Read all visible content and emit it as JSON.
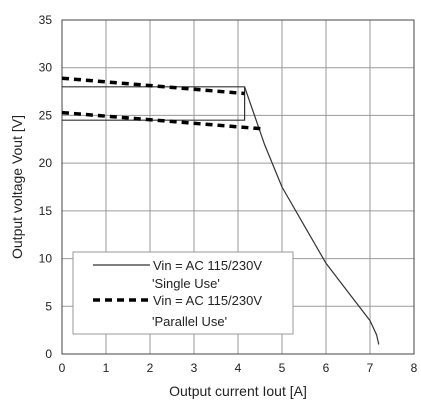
{
  "chart_data": {
    "type": "line",
    "xlabel": "Output current Iout [A]",
    "ylabel": "Output voltage Vout [V]",
    "xlim": [
      0,
      8
    ],
    "ylim": [
      0,
      35
    ],
    "xticks": [
      "0",
      "1",
      "2",
      "3",
      "4",
      "5",
      "6",
      "7",
      "8"
    ],
    "yticks": [
      "0",
      "5",
      "10",
      "15",
      "20",
      "25",
      "30",
      "35"
    ],
    "grid": true,
    "legend_position": "bottom-left",
    "series": [
      {
        "name": "Vin = AC 115/230V 'Single Use'",
        "name_lines": [
          "Vin = AC 115/230V",
          "'Single Use'"
        ],
        "style": "solid",
        "color": "#333333",
        "segments": [
          [
            [
              0,
              28
            ],
            [
              4.15,
              28
            ],
            [
              4.15,
              24.5
            ],
            [
              0,
              24.5
            ]
          ],
          [
            [
              4.15,
              28
            ],
            [
              4.6,
              22
            ],
            [
              5.0,
              17.5
            ],
            [
              5.5,
              13.5
            ],
            [
              6.0,
              9.5
            ],
            [
              6.5,
              6.5
            ],
            [
              7.0,
              3.5
            ],
            [
              7.15,
              2
            ],
            [
              7.2,
              1
            ]
          ]
        ]
      },
      {
        "name": "Vin = AC 115/230V 'Parallel Use'",
        "name_lines": [
          "Vin = AC 115/230V",
          "'Parallel Use'"
        ],
        "style": "dashed",
        "color": "#000000",
        "segments": [
          [
            [
              0,
              28.9
            ],
            [
              4.15,
              27.3
            ]
          ],
          [
            [
              0,
              25.3
            ],
            [
              4.55,
              23.6
            ]
          ]
        ]
      }
    ]
  }
}
